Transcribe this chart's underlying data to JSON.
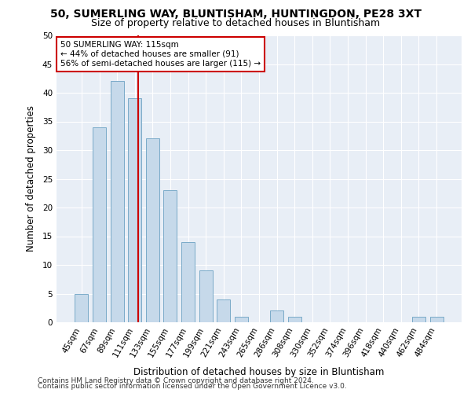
{
  "title1": "50, SUMERLING WAY, BLUNTISHAM, HUNTINGDON, PE28 3XT",
  "title2": "Size of property relative to detached houses in Bluntisham",
  "xlabel": "Distribution of detached houses by size in Bluntisham",
  "ylabel": "Number of detached properties",
  "categories": [
    "45sqm",
    "67sqm",
    "89sqm",
    "111sqm",
    "133sqm",
    "155sqm",
    "177sqm",
    "199sqm",
    "221sqm",
    "243sqm",
    "265sqm",
    "286sqm",
    "308sqm",
    "330sqm",
    "352sqm",
    "374sqm",
    "396sqm",
    "418sqm",
    "440sqm",
    "462sqm",
    "484sqm"
  ],
  "values": [
    5,
    34,
    42,
    39,
    32,
    23,
    14,
    9,
    4,
    1,
    0,
    2,
    1,
    0,
    0,
    0,
    0,
    0,
    0,
    1,
    1
  ],
  "bar_color": "#c6d9ea",
  "bar_edgecolor": "#7aaac8",
  "bar_width": 0.75,
  "vline_color": "#cc0000",
  "annotation_text": "50 SUMERLING WAY: 115sqm\n← 44% of detached houses are smaller (91)\n56% of semi-detached houses are larger (115) →",
  "annotation_box_color": "#ffffff",
  "annotation_box_edgecolor": "#cc0000",
  "ylim": [
    0,
    50
  ],
  "yticks": [
    0,
    5,
    10,
    15,
    20,
    25,
    30,
    35,
    40,
    45,
    50
  ],
  "background_color": "#e8eef6",
  "grid_color": "#ffffff",
  "footer1": "Contains HM Land Registry data © Crown copyright and database right 2024.",
  "footer2": "Contains public sector information licensed under the Open Government Licence v3.0.",
  "title1_fontsize": 10,
  "title2_fontsize": 9,
  "xlabel_fontsize": 8.5,
  "ylabel_fontsize": 8.5,
  "tick_fontsize": 7.5,
  "footer_fontsize": 6.5
}
